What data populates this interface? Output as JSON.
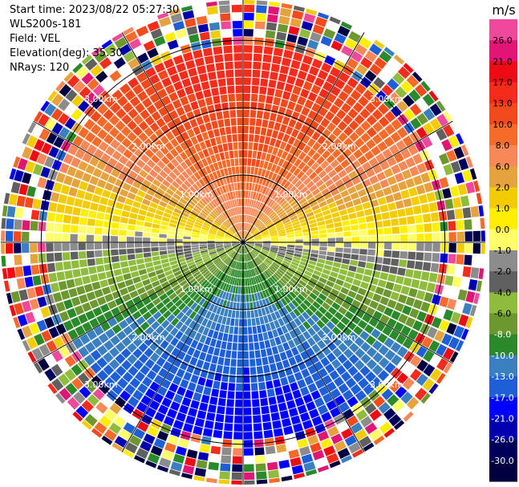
{
  "header": {
    "start_time": "Start time: 2023/08/22 05:27:30",
    "instrument": "WLS200s-181",
    "field": "Field: VEL",
    "elevation": "Elevation(deg): 35.30",
    "nrays": "NRays: 120"
  },
  "chart_data": {
    "type": "heatmap",
    "projection": "polar-ppi",
    "field": "VEL",
    "unit": "m/s",
    "nrays": 120,
    "elevation_deg": 35.3,
    "range_rings_km": [
      1.0,
      2.0,
      3.0
    ],
    "range_ring_labels": [
      "1.00km",
      "2.00km",
      "3.00km"
    ],
    "spoke_angles_deg": [
      0,
      30,
      60,
      90,
      120,
      150
    ],
    "pattern": {
      "near_range_km": 2.9,
      "wind_toward_azimuth_deg": 0,
      "max_abs_velocity": 16
    },
    "colorbar": {
      "title": "m/s",
      "tick_labels": [
        "26.0",
        "21.0",
        "17.0",
        "13.0",
        "10.0",
        "8.0",
        "6.0",
        "2.0",
        "1.0",
        "0.0",
        "-1.0",
        "-2.0",
        "-4.0",
        "-6.0",
        "-8.0",
        "-10.0",
        "-13.0",
        "-17.0",
        "-21.0",
        "-26.0",
        "-30.0"
      ],
      "bins": [
        {
          "min": 26,
          "max": 30,
          "color": "#f0489a"
        },
        {
          "min": 21,
          "max": 26,
          "color": "#e01574"
        },
        {
          "min": 17,
          "max": 21,
          "color": "#ee0c14"
        },
        {
          "min": 13,
          "max": 17,
          "color": "#f52c1c"
        },
        {
          "min": 10,
          "max": 13,
          "color": "#f24a1c"
        },
        {
          "min": 8,
          "max": 10,
          "color": "#f76b2a"
        },
        {
          "min": 6,
          "max": 8,
          "color": "#f88858"
        },
        {
          "min": 4,
          "max": 6,
          "color": "#e6a23c"
        },
        {
          "min": 2,
          "max": 4,
          "color": "#f2cc00"
        },
        {
          "min": 1,
          "max": 2,
          "color": "#ffee00"
        },
        {
          "min": 0,
          "max": 1,
          "color": "#ffff66"
        },
        {
          "min": -1,
          "max": 0,
          "color": "#8c8c8c"
        },
        {
          "min": -2,
          "max": -1,
          "color": "#606060"
        },
        {
          "min": -4,
          "max": -2,
          "color": "#8fbc3c"
        },
        {
          "min": -6,
          "max": -4,
          "color": "#6d9830"
        },
        {
          "min": -8,
          "max": -6,
          "color": "#2a8a2a"
        },
        {
          "min": -10,
          "max": -8,
          "color": "#3a7fc0"
        },
        {
          "min": -13,
          "max": -10,
          "color": "#1e5fd8"
        },
        {
          "min": -17,
          "max": -13,
          "color": "#0000ff"
        },
        {
          "min": -21,
          "max": -17,
          "color": "#0000b0"
        },
        {
          "min": -26,
          "max": -21,
          "color": "#00005a"
        },
        {
          "min": -30,
          "max": -26,
          "color": "#000040"
        }
      ]
    }
  }
}
